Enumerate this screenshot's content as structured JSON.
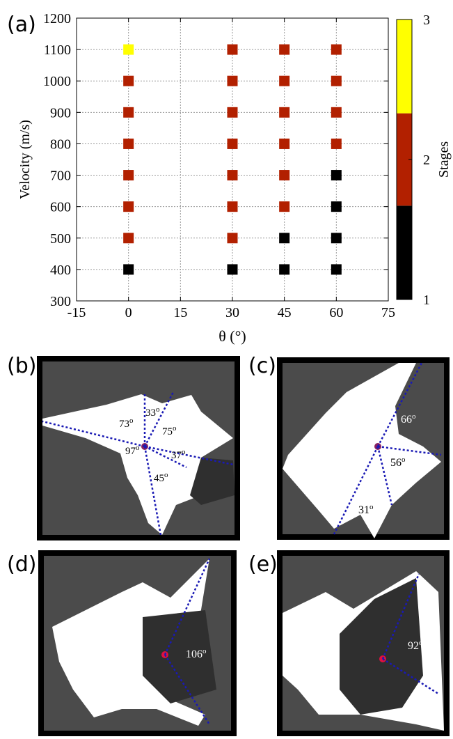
{
  "figure": {
    "panel_labels": [
      "(a)",
      "(b)",
      "(c)",
      "(d)",
      "(e)"
    ]
  },
  "chart_data": {
    "type": "scatter",
    "xlabel": "θ (°)",
    "ylabel": "Velocity (m/s)",
    "xlim": [
      -15,
      75
    ],
    "ylim": [
      300,
      1200
    ],
    "xticks": [
      -15,
      0,
      15,
      30,
      45,
      60,
      75
    ],
    "yticks": [
      300,
      400,
      500,
      600,
      700,
      800,
      900,
      1000,
      1100,
      1200
    ],
    "grid": true,
    "colorbar": {
      "label": "Stages",
      "ticks": [
        1,
        2,
        3
      ],
      "range": [
        1,
        3
      ],
      "bands": [
        {
          "from": 1,
          "to": 1.67,
          "color": "#000000"
        },
        {
          "from": 1.67,
          "to": 2.33,
          "color": "#b22000"
        },
        {
          "from": 2.33,
          "to": 3,
          "color": "#ffff00"
        }
      ]
    },
    "stage_colors": {
      "1": "#000000",
      "2": "#b22000",
      "3": "#ffff00"
    },
    "points": [
      {
        "x": 0,
        "y": 400,
        "stage": 1
      },
      {
        "x": 0,
        "y": 500,
        "stage": 2
      },
      {
        "x": 0,
        "y": 600,
        "stage": 2
      },
      {
        "x": 0,
        "y": 700,
        "stage": 2
      },
      {
        "x": 0,
        "y": 800,
        "stage": 2
      },
      {
        "x": 0,
        "y": 900,
        "stage": 2
      },
      {
        "x": 0,
        "y": 1000,
        "stage": 2
      },
      {
        "x": 0,
        "y": 1100,
        "stage": 3
      },
      {
        "x": 30,
        "y": 400,
        "stage": 1
      },
      {
        "x": 30,
        "y": 500,
        "stage": 2
      },
      {
        "x": 30,
        "y": 600,
        "stage": 2
      },
      {
        "x": 30,
        "y": 700,
        "stage": 2
      },
      {
        "x": 30,
        "y": 800,
        "stage": 2
      },
      {
        "x": 30,
        "y": 900,
        "stage": 2
      },
      {
        "x": 30,
        "y": 1000,
        "stage": 2
      },
      {
        "x": 30,
        "y": 1100,
        "stage": 2
      },
      {
        "x": 45,
        "y": 400,
        "stage": 1
      },
      {
        "x": 45,
        "y": 500,
        "stage": 1
      },
      {
        "x": 45,
        "y": 600,
        "stage": 2
      },
      {
        "x": 45,
        "y": 700,
        "stage": 2
      },
      {
        "x": 45,
        "y": 800,
        "stage": 2
      },
      {
        "x": 45,
        "y": 900,
        "stage": 2
      },
      {
        "x": 45,
        "y": 1000,
        "stage": 2
      },
      {
        "x": 45,
        "y": 1100,
        "stage": 2
      },
      {
        "x": 60,
        "y": 400,
        "stage": 1
      },
      {
        "x": 60,
        "y": 500,
        "stage": 1
      },
      {
        "x": 60,
        "y": 600,
        "stage": 1
      },
      {
        "x": 60,
        "y": 700,
        "stage": 1
      },
      {
        "x": 60,
        "y": 800,
        "stage": 2
      },
      {
        "x": 60,
        "y": 900,
        "stage": 2
      },
      {
        "x": 60,
        "y": 1000,
        "stage": 2
      },
      {
        "x": 60,
        "y": 1100,
        "stage": 2
      }
    ]
  },
  "panels": {
    "b": {
      "angles": [
        "33",
        "73",
        "75",
        "97",
        "37",
        "45"
      ],
      "superscript": "o"
    },
    "c": {
      "angles": [
        "66",
        "56",
        "31"
      ],
      "superscript": "o"
    },
    "d": {
      "angles": [
        "106"
      ],
      "superscript": "o"
    },
    "e": {
      "angles": [
        "92"
      ],
      "superscript": "o"
    }
  }
}
